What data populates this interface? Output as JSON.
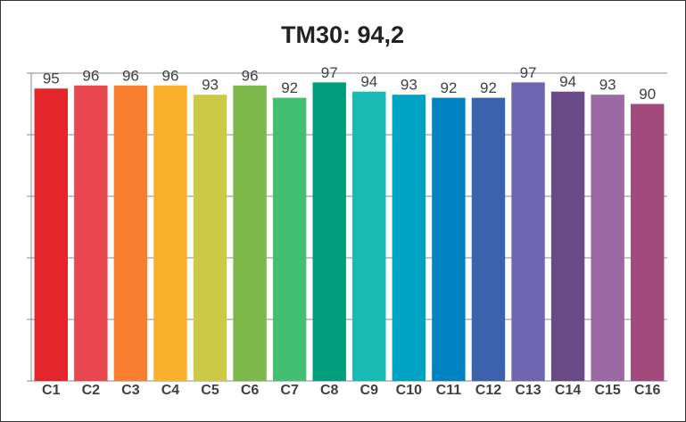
{
  "chart_data": {
    "type": "bar",
    "title": "TM30: 94,2",
    "categories": [
      "C1",
      "C2",
      "C3",
      "C4",
      "C5",
      "C6",
      "C7",
      "C8",
      "C9",
      "C10",
      "C11",
      "C12",
      "C13",
      "C14",
      "C15",
      "C16"
    ],
    "values": [
      95,
      96,
      96,
      96,
      93,
      96,
      92,
      97,
      94,
      93,
      92,
      92,
      97,
      94,
      93,
      90
    ],
    "colors": [
      "#e5252c",
      "#e8474f",
      "#f97f2e",
      "#fbb02b",
      "#cdc944",
      "#7fb84a",
      "#40c070",
      "#009e7b",
      "#18bbb3",
      "#00a3c2",
      "#0082c3",
      "#3a62ad",
      "#6e66b0",
      "#6a4a86",
      "#9a68a3",
      "#a34a7d"
    ],
    "ylim": [
      0,
      100
    ],
    "yticks": [
      0,
      20,
      40,
      60,
      80,
      100
    ],
    "grid": true,
    "data_labels": true
  }
}
